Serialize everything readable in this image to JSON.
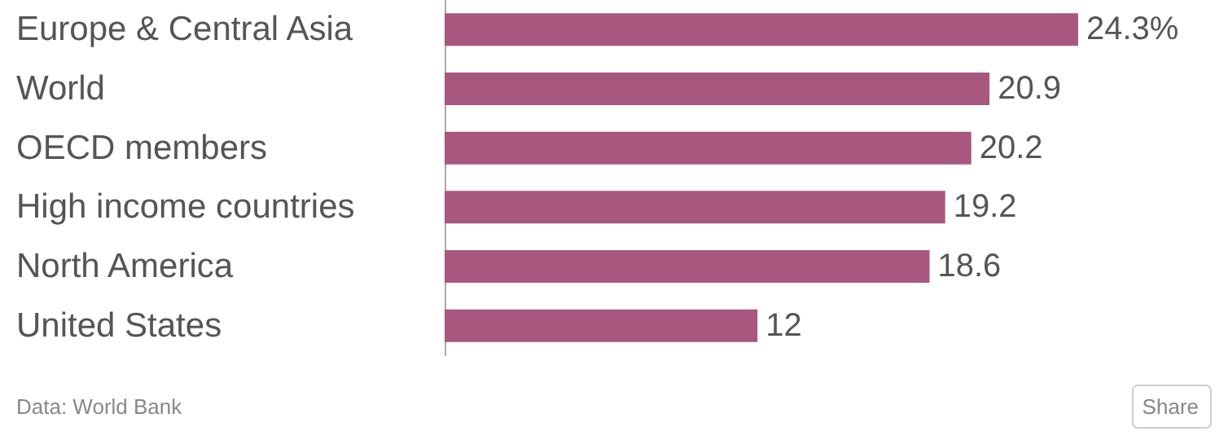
{
  "chart_data": {
    "type": "bar",
    "orientation": "horizontal",
    "categories": [
      "Europe & Central Asia",
      "World",
      "OECD members",
      "High income countries",
      "North America",
      "United States"
    ],
    "values": [
      24.3,
      20.9,
      20.2,
      19.2,
      18.6,
      12
    ],
    "value_labels": [
      "24.3%",
      "20.9",
      "20.2",
      "19.2",
      "18.6",
      "12"
    ],
    "color": "#a8577f",
    "annotations": [
      "Data: World Bank",
      "Share"
    ]
  }
}
